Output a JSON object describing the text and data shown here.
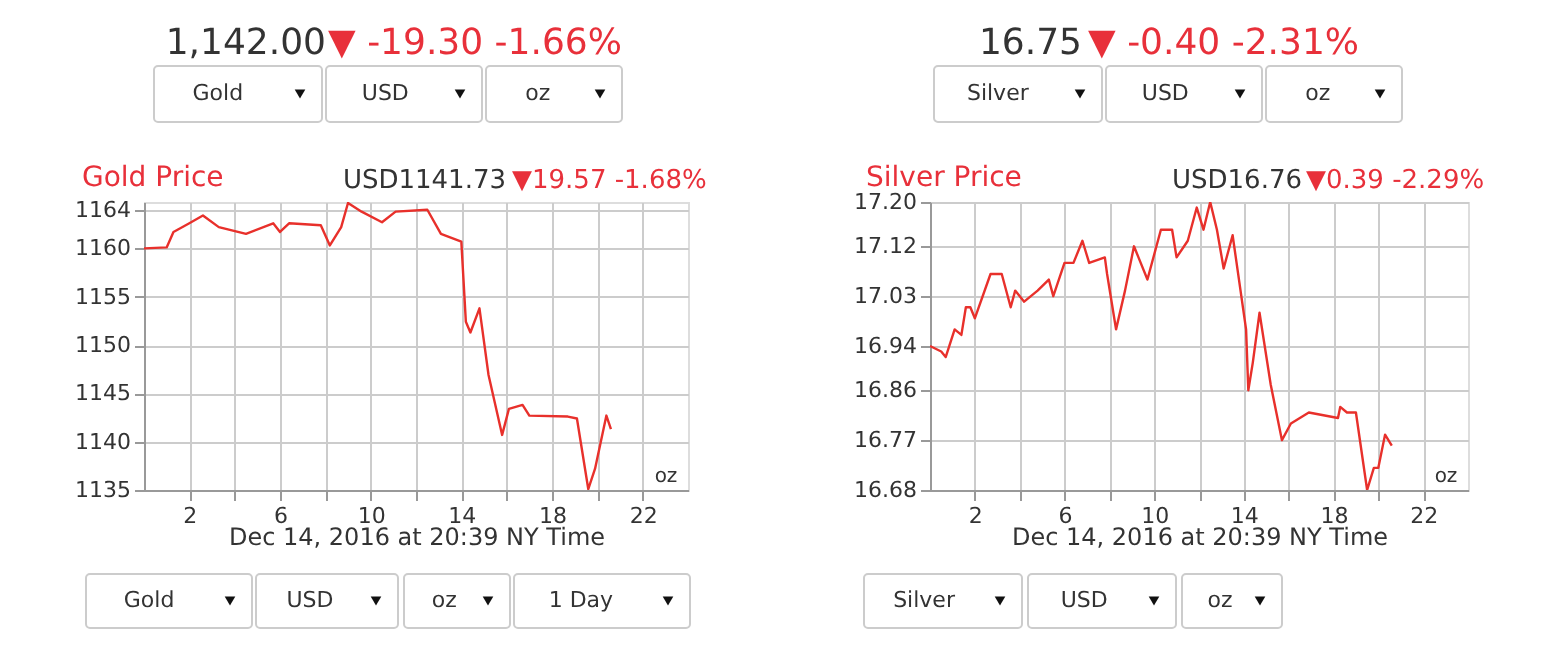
{
  "chart_data": [
    {
      "type": "line",
      "title": "Gold Price",
      "xlabel": "Dec 14, 2016 at 20:39 NY Time",
      "annotations": [
        "1,142.00",
        "▼ -19.30 -1.66%",
        "Gold",
        "USD",
        "oz",
        "USD1141.73",
        "▼19.57 -1.68%",
        "oz",
        "Gold",
        "USD",
        "oz",
        "1 Day"
      ],
      "x": [
        0,
        1.0,
        1.3,
        2.0,
        2.6,
        3.3,
        4.5,
        5.7,
        6.0,
        6.4,
        7.8,
        8.2,
        8.7,
        9.0,
        9.6,
        10.5,
        11.1,
        12.5,
        13.1,
        14.0,
        14.2,
        14.4,
        14.8,
        15.2,
        15.8,
        16.1,
        16.7,
        17.0,
        18.7,
        19.1,
        19.6,
        19.9,
        20.4,
        20.6
      ],
      "series": [
        {
          "color": "#e8302b",
          "values": [
            1160.0,
            1160.1,
            1161.7,
            1162.6,
            1163.4,
            1162.2,
            1161.5,
            1162.6,
            1161.7,
            1162.6,
            1162.4,
            1160.3,
            1162.2,
            1164.7,
            1163.8,
            1162.7,
            1163.8,
            1164.0,
            1161.5,
            1160.7,
            1152.4,
            1151.3,
            1153.8,
            1146.9,
            1140.7,
            1143.4,
            1143.8,
            1142.7,
            1142.6,
            1142.4,
            1135.1,
            1137.2,
            1142.7,
            1141.3
          ]
        }
      ],
      "xlim": [
        0,
        24
      ],
      "xticks": [
        2,
        {
          "value": 4,
          "label": null
        },
        6,
        {
          "value": 8,
          "label": null
        },
        10,
        {
          "value": 12,
          "label": null
        },
        14,
        {
          "value": 16,
          "label": null
        },
        18,
        {
          "value": 20,
          "label": null
        },
        22
      ],
      "ylim": [
        1135,
        1164.8
      ],
      "yticks": [
        1135,
        1140,
        1145,
        1150,
        1155,
        1160,
        1164
      ],
      "grid": true,
      "marker": "none",
      "line_style": "solid"
    },
    {
      "type": "line",
      "title": "Silver Price",
      "xlabel": "Dec 14, 2016 at 20:39 NY Time",
      "annotations": [
        "16.75",
        "▼ -0.40 -2.31%",
        "Silver",
        "USD",
        "oz",
        "USD16.76",
        "▼0.39 -2.29%",
        "oz",
        "Silver",
        "USD",
        "oz"
      ],
      "x": [
        0,
        0.5,
        0.7,
        1.1,
        1.4,
        1.6,
        1.8,
        2.0,
        2.7,
        3.2,
        3.6,
        3.8,
        4.2,
        4.8,
        5.3,
        5.5,
        6.0,
        6.4,
        6.8,
        7.1,
        7.8,
        7.9,
        8.3,
        8.7,
        9.1,
        9.3,
        9.7,
        10.3,
        10.8,
        11.0,
        11.5,
        11.9,
        12.2,
        12.5,
        12.8,
        13.1,
        13.5,
        14.1,
        14.2,
        14.4,
        14.7,
        15.2,
        15.7,
        16.1,
        16.9,
        18.2,
        18.3,
        18.6,
        19.0,
        19.5,
        19.8,
        20.0,
        20.3,
        20.6
      ],
      "series": [
        {
          "color": "#e8302b",
          "values": [
            16.94,
            16.93,
            16.92,
            16.97,
            16.96,
            17.01,
            17.01,
            16.99,
            17.07,
            17.07,
            17.01,
            17.04,
            17.02,
            17.04,
            17.06,
            17.03,
            17.09,
            17.09,
            17.13,
            17.09,
            17.1,
            17.07,
            16.97,
            17.04,
            17.12,
            17.1,
            17.06,
            17.15,
            17.15,
            17.1,
            17.13,
            17.19,
            17.15,
            17.2,
            17.15,
            17.08,
            17.14,
            16.97,
            16.86,
            16.91,
            17.0,
            16.87,
            16.77,
            16.8,
            16.82,
            16.81,
            16.83,
            16.82,
            16.82,
            16.68,
            16.72,
            16.72,
            16.78,
            16.76
          ]
        }
      ],
      "xlim": [
        0,
        24
      ],
      "xticks": [
        2,
        {
          "value": 4,
          "label": null
        },
        6,
        {
          "value": 8,
          "label": null
        },
        10,
        {
          "value": 12,
          "label": null
        },
        14,
        {
          "value": 16,
          "label": null
        },
        18,
        {
          "value": 20,
          "label": null
        },
        22
      ],
      "ylim": [
        16.68,
        17.2
      ],
      "yticks": [
        16.68,
        16.77,
        16.86,
        16.94,
        17.03,
        17.12,
        {
          "value": 17.2,
          "label": "17.20"
        }
      ],
      "grid": true,
      "marker": "none",
      "line_style": "solid"
    }
  ]
}
